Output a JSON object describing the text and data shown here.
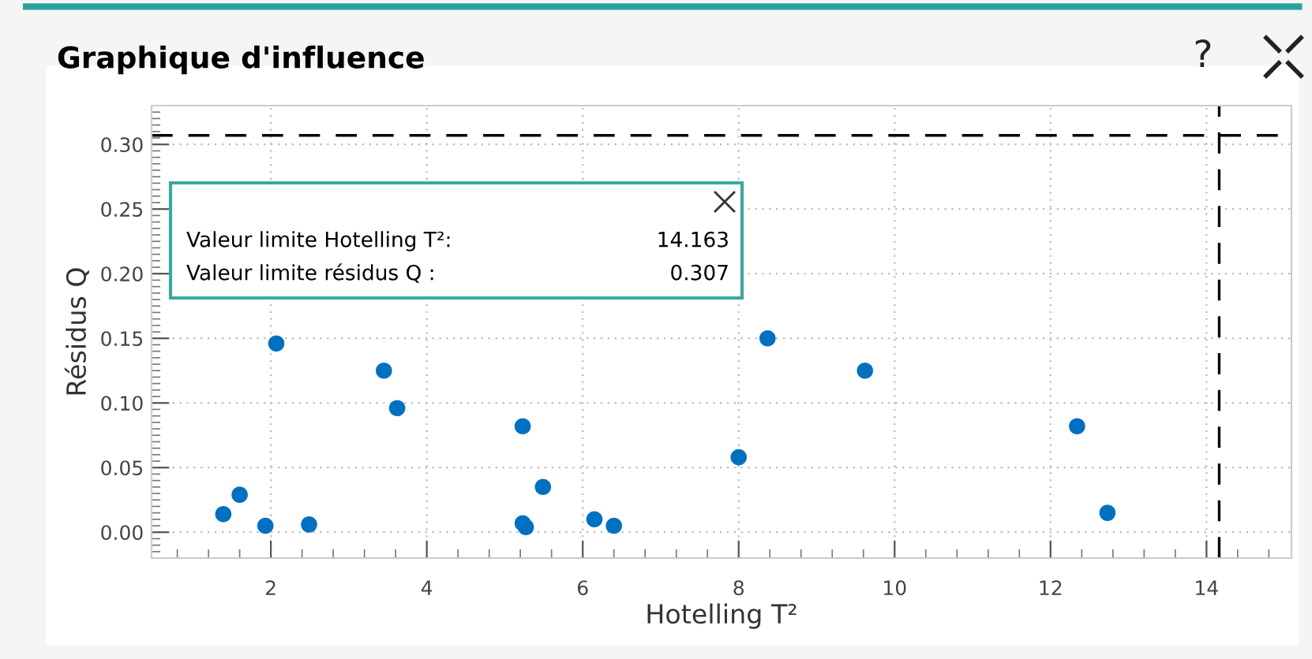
{
  "chart_data": {
    "type": "scatter",
    "title": "Graphique d'influence",
    "xlabel": "Hotelling T²",
    "ylabel": "Résidus Q",
    "x": [
      1.39,
      1.6,
      1.93,
      2.07,
      2.49,
      3.45,
      3.62,
      5.23,
      5.49,
      5.23,
      5.27,
      6.15,
      6.4,
      8.0,
      8.37,
      9.62,
      12.34,
      12.73
    ],
    "series": [
      {
        "color": "#0070c0",
        "values": [
          0.014,
          0.029,
          0.005,
          0.146,
          0.006,
          0.125,
          0.096,
          0.082,
          0.035,
          0.007,
          0.004,
          0.01,
          0.005,
          0.058,
          0.15,
          0.125,
          0.082,
          0.015
        ]
      }
    ],
    "xlim": [
      0.47,
      15.09
    ],
    "ylim": [
      -0.02,
      0.33
    ],
    "xticks": [
      2,
      4,
      6,
      8,
      10,
      12,
      14
    ],
    "yticks": [
      {
        "value": 0,
        "label": "0.00"
      },
      {
        "value": 0.05,
        "label": "0.05"
      },
      {
        "value": 0.1,
        "label": "0.10"
      },
      {
        "value": 0.15,
        "label": "0.15"
      },
      {
        "value": 0.2,
        "label": "0.20"
      },
      {
        "value": 0.25,
        "label": "0.25"
      },
      {
        "value": 0.3,
        "label": "0.30"
      }
    ],
    "ref_lines": [
      {
        "axis": "x",
        "value": 14.163,
        "color": "#000000",
        "line_style": "dashed"
      },
      {
        "axis": "y",
        "value": 0.307,
        "color": "#000000",
        "line_style": "dashed"
      }
    ],
    "annotations": [
      "Valeur limite Hotelling T²:",
      "14.163",
      "Valeur limite résidus Q :",
      "0.307",
      "?"
    ],
    "grid": true,
    "marker": "circle"
  }
}
